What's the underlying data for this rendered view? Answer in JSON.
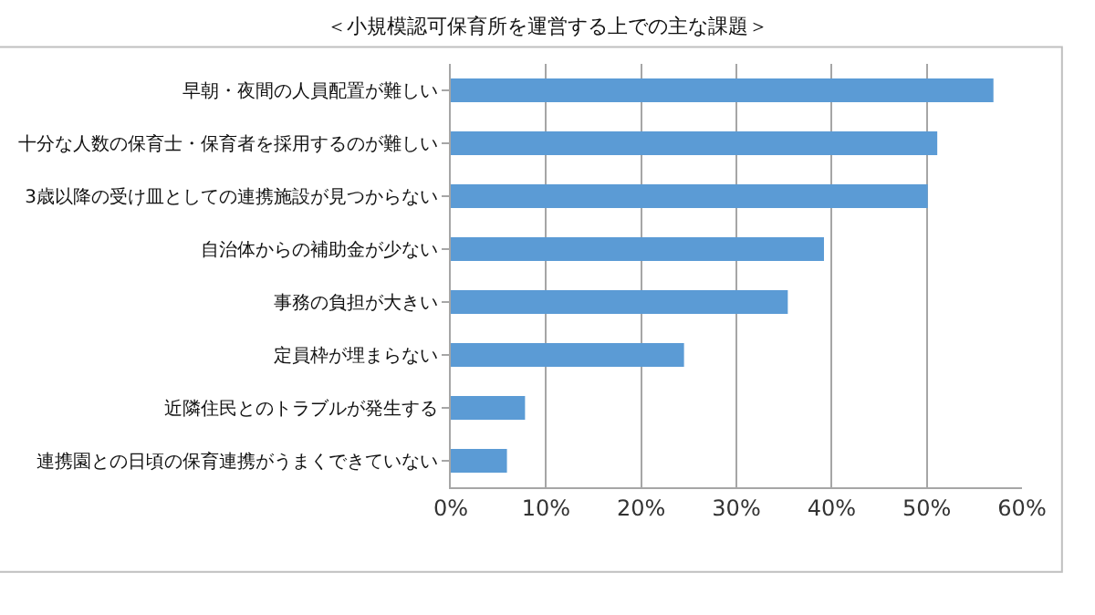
{
  "chart_data": {
    "type": "bar",
    "orientation": "horizontal",
    "title": "＜小規模認可保育所を運営する上での主な課題＞",
    "categories": [
      "早朝・夜間の人員配置が難しい",
      "十分な人数の保育士・保育者を採用するのが難しい",
      "3歳以降の受け皿としての連携施設が見つからない",
      "自治体からの補助金が少ない",
      "事務の負担が大きい",
      "定員枠が埋まらない",
      "近隣住民とのトラブルが発生する",
      "連携園との日頃の保育連携がうまくできていない"
    ],
    "values": [
      57.0,
      51.1,
      50.1,
      39.2,
      35.4,
      24.5,
      7.8,
      5.9
    ],
    "color": "#5b9bd5",
    "xlim": [
      0,
      60
    ],
    "xticks": [
      {
        "value": 0,
        "label": "0%"
      },
      {
        "value": 10,
        "label": "10%"
      },
      {
        "value": 20,
        "label": "20%"
      },
      {
        "value": 30,
        "label": "30%"
      },
      {
        "value": 40,
        "label": "40%"
      },
      {
        "value": 50,
        "label": "50%"
      },
      {
        "value": 60,
        "label": "60%"
      }
    ],
    "grid": "x"
  }
}
